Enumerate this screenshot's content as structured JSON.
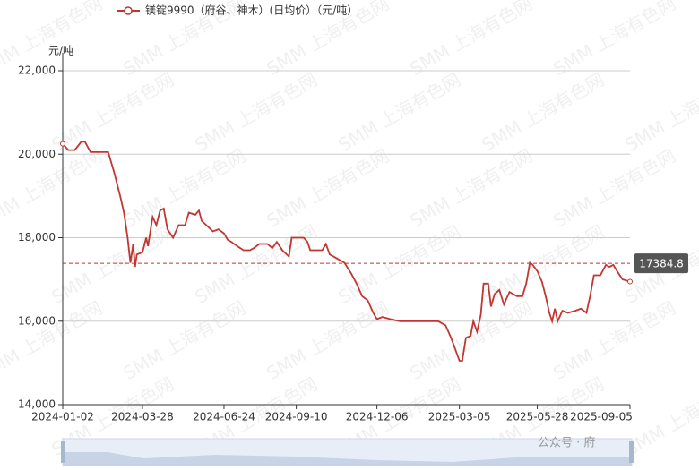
{
  "chart_data": {
    "type": "line",
    "legend": "镁锭9990（府谷、神木）(日均价）（元/吨）",
    "y_axis_label": "元/吨",
    "watermark": "SMM 上海有色网",
    "wechat_watermark": "公众号 · 府",
    "xlim": [
      "2024-01-02",
      "2025-09-05"
    ],
    "xticks": [
      "2024-01-02",
      "2024-03-28",
      "2024-06-24",
      "2024-09-10",
      "2024-12-06",
      "2025-03-05",
      "2025-05-28",
      "2025-09-05"
    ],
    "ylim": [
      14000,
      22000
    ],
    "yticks": [
      {
        "value": 14000,
        "label": "14,000"
      },
      {
        "value": 16000,
        "label": "16,000"
      },
      {
        "value": 18000,
        "label": "18,000"
      },
      {
        "value": 20000,
        "label": "20,000"
      },
      {
        "value": 22000,
        "label": "22,000"
      }
    ],
    "grid": true,
    "mark_line": {
      "value": 17384.8
    },
    "series": [
      {
        "name": "镁锭9990（府谷、神木）(日均价）（元/吨）",
        "color": "#c23531",
        "x": [
          "2024-01-02",
          "2024-01-08",
          "2024-01-15",
          "2024-01-22",
          "2024-01-26",
          "2024-02-01",
          "2024-02-20",
          "2024-02-26",
          "2024-03-04",
          "2024-03-08",
          "2024-03-12",
          "2024-03-15",
          "2024-03-18",
          "2024-03-20",
          "2024-03-22",
          "2024-03-28",
          "2024-04-01",
          "2024-04-03",
          "2024-04-08",
          "2024-04-12",
          "2024-04-16",
          "2024-04-20",
          "2024-04-24",
          "2024-04-30",
          "2024-05-06",
          "2024-05-13",
          "2024-05-17",
          "2024-05-24",
          "2024-05-28",
          "2024-05-31",
          "2024-06-05",
          "2024-06-12",
          "2024-06-18",
          "2024-06-24",
          "2024-06-28",
          "2024-07-02",
          "2024-07-08",
          "2024-07-15",
          "2024-07-22",
          "2024-07-26",
          "2024-08-01",
          "2024-08-10",
          "2024-08-15",
          "2024-08-20",
          "2024-08-26",
          "2024-09-02",
          "2024-09-05",
          "2024-09-10",
          "2024-09-18",
          "2024-09-22",
          "2024-09-25",
          "2024-10-08",
          "2024-10-12",
          "2024-10-16",
          "2024-10-24",
          "2024-11-01",
          "2024-11-08",
          "2024-11-14",
          "2024-11-20",
          "2024-11-26",
          "2024-12-02",
          "2024-12-06",
          "2024-12-12",
          "2024-12-20",
          "2024-12-31",
          "2025-01-20",
          "2025-02-10",
          "2025-02-18",
          "2025-02-24",
          "2025-03-01",
          "2025-03-05",
          "2025-03-08",
          "2025-03-12",
          "2025-03-17",
          "2025-03-20",
          "2025-03-24",
          "2025-03-28",
          "2025-03-31",
          "2025-04-05",
          "2025-04-08",
          "2025-04-12",
          "2025-04-17",
          "2025-04-22",
          "2025-04-28",
          "2025-05-06",
          "2025-05-12",
          "2025-05-16",
          "2025-05-20",
          "2025-05-23",
          "2025-05-28",
          "2025-06-02",
          "2025-06-06",
          "2025-06-10",
          "2025-06-13",
          "2025-06-16",
          "2025-06-19",
          "2025-06-24",
          "2025-06-30",
          "2025-07-08",
          "2025-07-14",
          "2025-07-20",
          "2025-07-24",
          "2025-07-28",
          "2025-08-04",
          "2025-08-10",
          "2025-08-14",
          "2025-08-18",
          "2025-08-22",
          "2025-08-28",
          "2025-09-05"
        ],
        "values": [
          20250,
          20100,
          20100,
          20300,
          20300,
          20050,
          20050,
          19600,
          19000,
          18600,
          18000,
          17400,
          17850,
          17300,
          17600,
          17650,
          18000,
          17800,
          18500,
          18300,
          18650,
          18700,
          18200,
          18000,
          18300,
          18300,
          18600,
          18550,
          18650,
          18400,
          18300,
          18150,
          18200,
          18100,
          17950,
          17900,
          17800,
          17700,
          17700,
          17750,
          17850,
          17850,
          17750,
          17900,
          17700,
          17550,
          18000,
          18000,
          18000,
          17900,
          17700,
          17700,
          17850,
          17600,
          17500,
          17400,
          17150,
          16900,
          16600,
          16500,
          16200,
          16050,
          16100,
          16050,
          16000,
          16000,
          16000,
          15900,
          15600,
          15300,
          15050,
          15050,
          15600,
          15650,
          16000,
          15750,
          16150,
          16900,
          16900,
          16350,
          16650,
          16750,
          16400,
          16700,
          16600,
          16600,
          16900,
          17400,
          17350,
          17200,
          16950,
          16600,
          16200,
          16000,
          16300,
          16000,
          16250,
          16200,
          16250,
          16300,
          16200,
          16600,
          17100,
          17100,
          17350,
          17300,
          17350,
          17200,
          17000,
          16950
        ]
      }
    ]
  }
}
